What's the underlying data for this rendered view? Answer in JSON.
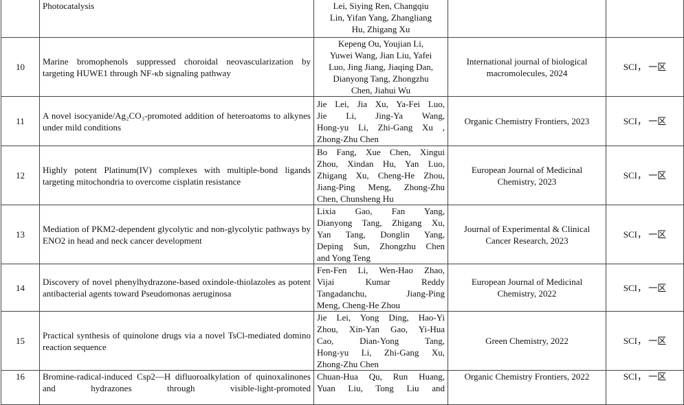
{
  "rows": [
    {
      "no": "",
      "title": "Photocatalysis",
      "authors": [
        "Lei, Siying Ren, Changqiu",
        "Lin, Yifan Yang, Zhangliang",
        "Hu, Zhigang Xu"
      ],
      "journal": "",
      "level": ""
    },
    {
      "no": "10",
      "title": "Marine bromophenols suppressed choroidal neovascularization by targeting HUWE1 through NF-κb signaling pathway",
      "authors": [
        "Kepeng Ou, Youjian Li,",
        "Yuwei Wang, Jian Liu, Yafei",
        "Luo, Jing Jiang, Jiaqing Dan,",
        "Dianyong Tang, Zhongzhu",
        "Chen, Jiahui Wu"
      ],
      "journal": "International journal of biological macromolecules, 2024",
      "level": "SCI， 一区"
    },
    {
      "no": "11",
      "title": "A novel isocyanide/Ag₂CO₃-promoted addition of heteroatoms to alkynes under mild conditions",
      "authors": [
        "Jie Lei, Jia Xu, Ya-Fei Luo,",
        "Jie Li, Jing-Ya Wang,",
        "Hong-yu Li, Zhi-Gang Xu ,",
        "Zhong-Zhu Chen"
      ],
      "journal": "Organic Chemistry Frontiers, 2023",
      "level": "SCI， 一区"
    },
    {
      "no": "12",
      "title": "Highly potent Platinum(IV) complexes with multiple-bond ligands targeting mitochondria to overcome cisplatin resistance",
      "authors": [
        "Bo Fang, Xue Chen, Xingui",
        "Zhou, Xindan Hu, Yan Luo,",
        "Zhigang Xu, Cheng-He Zhou,",
        "Jiang-Ping Meng, Zhong-Zhu",
        "Chen, Chunsheng Hu"
      ],
      "journal": "European Journal of Medicinal Chemistry, 2023",
      "level": "SCI， 一区"
    },
    {
      "no": "13",
      "title": "Mediation of PKM2-dependent glycolytic and non-glycolytic pathways by ENO2 in head and neck cancer development",
      "authors": [
        "Lixia Gao, Fan Yang,",
        "Dianyong Tang, Zhigang Xu,",
        "Yan Tang, Donglin Yang,",
        "Deping Sun, Zhongzhu Chen",
        "and Yong Teng"
      ],
      "journal": "Journal of Experimental & Clinical Cancer Research, 2023",
      "level": "SCI， 一区"
    },
    {
      "no": "14",
      "title": "Discovery of novel phenylhydrazone-based oxindole-thiolazoles as potent antibacterial agents toward Pseudomonas aeruginosa",
      "authors": [
        "Fen-Fen Li, Wen-Hao Zhao,",
        "Vijai Kumar Reddy",
        "Tangadanchu, Jiang-Ping",
        "Meng, Cheng-He Zhou"
      ],
      "journal": "European Journal of Medicinal Chemistry, 2022",
      "level": "SCI， 一区"
    },
    {
      "no": "15",
      "title": "Practical synthesis of quinolone drugs via a novel TsCl-mediated domino reaction sequence",
      "authors": [
        "Jie Lei, Yong Ding, Hao-Yi",
        "Zhou, Xin-Yan Gao, Yi-Hua",
        "Cao, Dian-Yong Tang,",
        "Hong-yu Li, Zhi-Gang Xu,",
        "Zhong-Zhu Chen"
      ],
      "journal": "Green Chemistry, 2022",
      "level": "SCI， 一区"
    },
    {
      "no": "16",
      "title": "Bromine-radical-induced Csp2—H difluoroalkylation of quinoxalinones and hydrazones through visible-light-promoted",
      "authors": [
        "Chuan-Hua Qu, Run Huang,",
        "Yuan Liu, Tong Liu and"
      ],
      "journal": "Organic Chemistry Frontiers, 2022",
      "level": "SCI， 一区"
    }
  ]
}
